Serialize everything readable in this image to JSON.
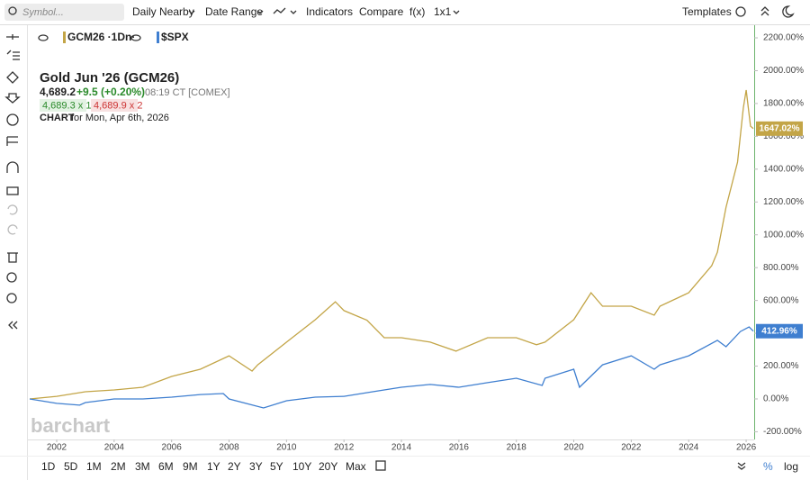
{
  "toolbar": {
    "search_placeholder": "Symbol...",
    "items": [
      "Daily Nearby",
      "Date Range",
      "Indicators",
      "Compare",
      "f(x)",
      "1x1"
    ],
    "templates": "Templates"
  },
  "quote": {
    "title": "Gold Jun '26 (GCM26)",
    "last": "4,689.2",
    "change": "+9.5 (+0.20%)",
    "time": "08:19 CT [COMEX]",
    "bid": "4,689.3 x 1",
    "ask": "4,689.9 x 2",
    "chart_label": "CHART",
    "chart_date": "for Mon, Apr 6th, 2026"
  },
  "watermark": "barchart",
  "ranges": [
    "1D",
    "5D",
    "1M",
    "2M",
    "3M",
    "6M",
    "9M",
    "1Y",
    "2Y",
    "3Y",
    "5Y",
    "10Y",
    "20Y",
    "Max"
  ],
  "scale_modes": [
    "%",
    "log"
  ],
  "chart_data": {
    "type": "line",
    "xlim": [
      2001.06,
      2026.28
    ],
    "xticks": [
      2002,
      2004,
      2006,
      2008,
      2010,
      2012,
      2014,
      2016,
      2018,
      2020,
      2022,
      2024,
      2026
    ],
    "ylim": [
      -247,
      2277
    ],
    "yticks": [
      {
        "value": -200,
        "label": "-200.00%"
      },
      {
        "value": 0,
        "label": "0.00%"
      },
      {
        "value": 200,
        "label": "200.00%"
      },
      {
        "value": 400,
        "label": "400.00%"
      },
      {
        "value": 600,
        "label": "600.00%"
      },
      {
        "value": 800,
        "label": "800.00%"
      },
      {
        "value": 1000,
        "label": "1000.00%"
      },
      {
        "value": 1200,
        "label": "1200.00%"
      },
      {
        "value": 1400,
        "label": "1400.00%"
      },
      {
        "value": 1600,
        "label": "1600.00%"
      },
      {
        "value": 1800,
        "label": "1800.00%"
      },
      {
        "value": 2000,
        "label": "2000.00%"
      },
      {
        "value": 2200,
        "label": "2200.00%"
      }
    ],
    "series": [
      {
        "name": "GCM26 ·1Dn·",
        "color": "#c3a547",
        "x": [
          2001.06,
          2002,
          2003,
          2004,
          2005,
          2006,
          2007,
          2008,
          2008.8,
          2009,
          2010,
          2011,
          2011.7,
          2012,
          2012.8,
          2013.4,
          2014,
          2015,
          2015.9,
          2017,
          2018,
          2018.7,
          2019,
          2020,
          2020.6,
          2021,
          2022,
          2022.8,
          2023,
          2024,
          2024.8,
          2025,
          2025.3,
          2025.7,
          2025.9,
          2026,
          2026.15,
          2026.25
        ],
        "values": [
          0,
          16,
          44,
          55,
          71,
          137,
          181,
          263,
          170,
          208,
          346,
          483,
          592,
          538,
          480,
          373,
          373,
          346,
          291,
          373,
          373,
          330,
          346,
          483,
          647,
          565,
          565,
          510,
          565,
          647,
          812,
          894,
          1168,
          1443,
          1772,
          1882,
          1662,
          1647.02
        ],
        "value_labels": [
          null,
          null,
          null,
          null,
          null,
          null,
          null,
          null,
          null,
          null,
          null,
          null,
          null,
          null,
          null,
          null,
          null,
          null,
          null,
          null,
          null,
          null,
          null,
          null,
          null,
          null,
          null,
          null,
          null,
          null,
          null,
          null,
          null,
          null,
          null,
          null,
          null,
          "1647.02%"
        ]
      },
      {
        "name": "$SPX",
        "color": "#3f7fd0",
        "x": [
          2001.06,
          2002,
          2002.8,
          2003,
          2004,
          2005,
          2006,
          2007,
          2007.8,
          2008,
          2009.2,
          2010,
          2011,
          2012,
          2013,
          2014,
          2015,
          2016,
          2017,
          2018,
          2018.9,
          2019,
          2020,
          2020.2,
          2021,
          2022,
          2022.8,
          2023,
          2024,
          2025,
          2025.3,
          2025.8,
          2026.1,
          2026.25
        ],
        "values": [
          0,
          -27,
          -38,
          -22,
          0,
          0,
          11,
          27,
          33,
          0,
          -55,
          -11,
          11,
          16,
          44,
          71,
          88,
          71,
          99,
          126,
          82,
          126,
          181,
          71,
          208,
          263,
          181,
          208,
          263,
          357,
          318,
          411,
          439,
          412.96
        ],
        "value_labels": [
          null,
          null,
          null,
          null,
          null,
          null,
          null,
          null,
          null,
          null,
          null,
          null,
          null,
          null,
          null,
          null,
          null,
          null,
          null,
          null,
          null,
          null,
          null,
          null,
          null,
          null,
          null,
          null,
          null,
          null,
          null,
          null,
          null,
          "412.96%"
        ]
      }
    ]
  }
}
